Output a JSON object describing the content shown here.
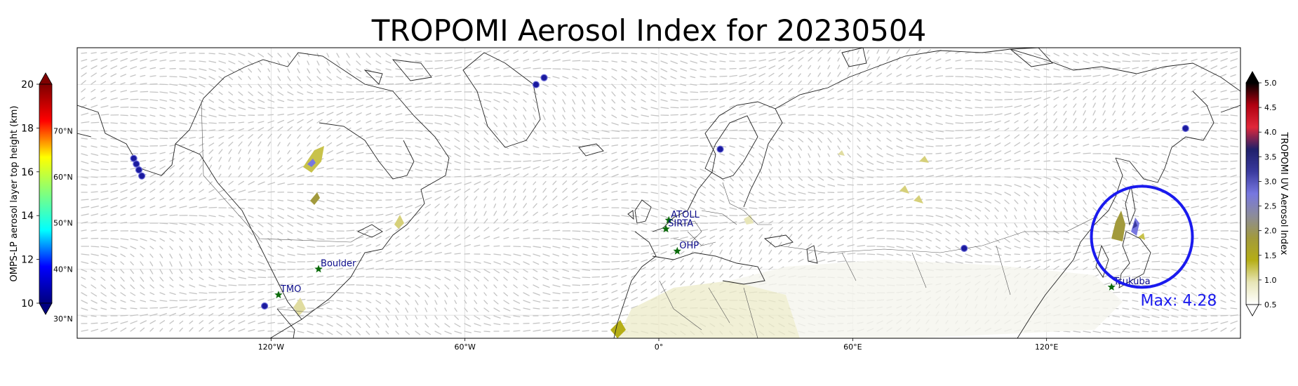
{
  "title": "TROPOMI Aerosol Index for 20230504",
  "left_colorbar": {
    "label": "OMPS-LP aerosol layer top height (km)",
    "min": 10,
    "max": 20,
    "ticks": [
      10,
      12,
      14,
      16,
      18,
      20
    ],
    "colormap": [
      "#00007f",
      "#0000ff",
      "#00ffff",
      "#7fff7f",
      "#ffff00",
      "#ff0000",
      "#7f0000"
    ],
    "latitude_labels": [
      "70°N",
      "60°N",
      "50°N",
      "40°N",
      "30°N"
    ]
  },
  "right_colorbar": {
    "label": "TROPOMI UV Aerosol Index",
    "min": 0.5,
    "max": 5.0,
    "ticks": [
      "0.5",
      "1.0",
      "1.5",
      "2.0",
      "2.5",
      "3.0",
      "3.5",
      "4.0",
      "4.5",
      "5.0"
    ],
    "colors": [
      "#ffffff",
      "#e8e6b8",
      "#b5ae16",
      "#a29a3c",
      "#8c8c9a",
      "#7777e0",
      "#3a3a9e",
      "#20206a",
      "#e0283a",
      "#b00010",
      "#000000"
    ]
  },
  "map": {
    "x_ticks": [
      "120°W",
      "60°W",
      "0°",
      "60°E",
      "120°E"
    ],
    "lon_range": [
      -180,
      180
    ],
    "lat_range": [
      25,
      88
    ],
    "stations": [
      {
        "name": "TMO",
        "lon": -117.7,
        "lat": 34.4
      },
      {
        "name": "Boulder",
        "lon": -105.3,
        "lat": 40.0
      },
      {
        "name": "ATOLL",
        "lon": 3.1,
        "lat": 50.6
      },
      {
        "name": "SIRTA",
        "lon": 2.2,
        "lat": 48.7
      },
      {
        "name": "OHP",
        "lon": 5.7,
        "lat": 43.9
      },
      {
        "name": "Tsukuba",
        "lon": 140.1,
        "lat": 36.1
      }
    ],
    "omps_points": [
      {
        "lon": -162.5,
        "lat": 64.0
      },
      {
        "lon": -161.7,
        "lat": 62.8
      },
      {
        "lon": -160.9,
        "lat": 61.5
      },
      {
        "lon": -160.0,
        "lat": 60.2
      },
      {
        "lon": -38.0,
        "lat": 80.0
      },
      {
        "lon": -35.5,
        "lat": 81.5
      },
      {
        "lon": 19.0,
        "lat": 66.0
      },
      {
        "lon": 94.5,
        "lat": 44.5
      },
      {
        "lon": 163.0,
        "lat": 70.5
      },
      {
        "lon": -122.0,
        "lat": 32.0
      }
    ],
    "max_circle": {
      "lon": 149.5,
      "lat": 47.0,
      "color": "#1a1aee"
    },
    "max_label": "Max: 4.28"
  }
}
